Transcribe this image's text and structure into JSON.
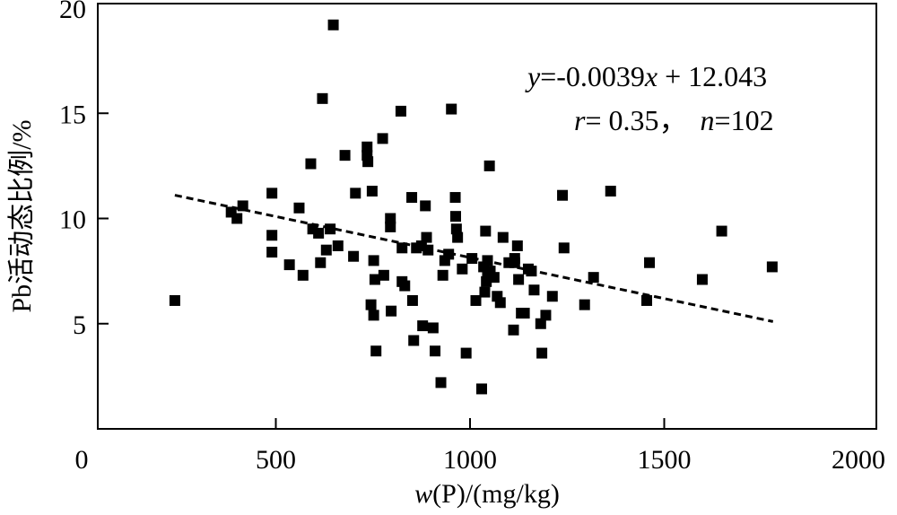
{
  "chart_data": {
    "type": "scatter",
    "title": "",
    "xlabel_var": "w",
    "xlabel_rest": "(P)/(mg/kg)",
    "ylabel": "Pb活动态比例/%",
    "xlim": [
      0,
      2000
    ],
    "ylim": [
      0,
      20
    ],
    "x_ticks": [
      0,
      500,
      1000,
      1500,
      2000
    ],
    "y_ticks": [
      5,
      10,
      15,
      20
    ],
    "x_tick_labels": [
      "0",
      "500",
      "1000",
      "1500",
      "2000"
    ],
    "y_tick_labels": [
      "5",
      "10",
      "15",
      "20"
    ],
    "grid": false,
    "legend": "none",
    "marker": "square",
    "marker_color": "#000000",
    "trendline": {
      "slope": -0.0039,
      "intercept": 12.043,
      "x_range": [
        240,
        1780
      ],
      "style": "dashed"
    },
    "annotations": {
      "equation": {
        "y_var": "y",
        "eq1": "=-0.0039",
        "x_var": "x",
        "eq2": " + 12.043"
      },
      "stats": {
        "r_var": "r",
        "r_text": "= 0.35，",
        "n_var": "n",
        "n_text": "=102"
      }
    },
    "points": [
      {
        "x": 240,
        "y": 6.1
      },
      {
        "x": 385,
        "y": 10.3
      },
      {
        "x": 400,
        "y": 10.0
      },
      {
        "x": 415,
        "y": 10.6
      },
      {
        "x": 490,
        "y": 11.2
      },
      {
        "x": 490,
        "y": 9.2
      },
      {
        "x": 490,
        "y": 8.4
      },
      {
        "x": 535,
        "y": 7.8
      },
      {
        "x": 560,
        "y": 10.5
      },
      {
        "x": 570,
        "y": 7.3
      },
      {
        "x": 590,
        "y": 12.6
      },
      {
        "x": 595,
        "y": 9.5
      },
      {
        "x": 610,
        "y": 9.3
      },
      {
        "x": 615,
        "y": 7.9
      },
      {
        "x": 620,
        "y": 15.7
      },
      {
        "x": 630,
        "y": 8.5
      },
      {
        "x": 640,
        "y": 9.5
      },
      {
        "x": 648,
        "y": 19.2
      },
      {
        "x": 660,
        "y": 8.7
      },
      {
        "x": 678,
        "y": 13.0
      },
      {
        "x": 700,
        "y": 8.2
      },
      {
        "x": 705,
        "y": 11.2
      },
      {
        "x": 735,
        "y": 13.4
      },
      {
        "x": 735,
        "y": 13.0
      },
      {
        "x": 737,
        "y": 12.7
      },
      {
        "x": 745,
        "y": 5.9
      },
      {
        "x": 748,
        "y": 11.3
      },
      {
        "x": 752,
        "y": 8.0
      },
      {
        "x": 752,
        "y": 5.4
      },
      {
        "x": 755,
        "y": 7.1
      },
      {
        "x": 758,
        "y": 3.7
      },
      {
        "x": 775,
        "y": 13.8
      },
      {
        "x": 778,
        "y": 7.3
      },
      {
        "x": 795,
        "y": 10.0
      },
      {
        "x": 795,
        "y": 9.6
      },
      {
        "x": 797,
        "y": 5.6
      },
      {
        "x": 822,
        "y": 15.1
      },
      {
        "x": 825,
        "y": 8.6
      },
      {
        "x": 825,
        "y": 7.0
      },
      {
        "x": 832,
        "y": 6.8
      },
      {
        "x": 850,
        "y": 11.0
      },
      {
        "x": 852,
        "y": 6.1
      },
      {
        "x": 855,
        "y": 4.2
      },
      {
        "x": 862,
        "y": 8.6
      },
      {
        "x": 875,
        "y": 8.7
      },
      {
        "x": 878,
        "y": 4.9
      },
      {
        "x": 885,
        "y": 10.6
      },
      {
        "x": 888,
        "y": 9.1
      },
      {
        "x": 892,
        "y": 8.5
      },
      {
        "x": 905,
        "y": 4.8
      },
      {
        "x": 910,
        "y": 3.7
      },
      {
        "x": 925,
        "y": 2.2
      },
      {
        "x": 930,
        "y": 7.3
      },
      {
        "x": 935,
        "y": 8.0
      },
      {
        "x": 945,
        "y": 8.3
      },
      {
        "x": 952,
        "y": 15.2
      },
      {
        "x": 962,
        "y": 11.0
      },
      {
        "x": 963,
        "y": 10.1
      },
      {
        "x": 965,
        "y": 9.5
      },
      {
        "x": 968,
        "y": 9.1
      },
      {
        "x": 980,
        "y": 7.6
      },
      {
        "x": 990,
        "y": 3.6
      },
      {
        "x": 1005,
        "y": 8.1
      },
      {
        "x": 1015,
        "y": 6.1
      },
      {
        "x": 1030,
        "y": 1.9
      },
      {
        "x": 1035,
        "y": 7.7
      },
      {
        "x": 1038,
        "y": 6.5
      },
      {
        "x": 1040,
        "y": 9.4
      },
      {
        "x": 1042,
        "y": 7.0
      },
      {
        "x": 1045,
        "y": 8.0
      },
      {
        "x": 1050,
        "y": 12.5
      },
      {
        "x": 1052,
        "y": 7.5
      },
      {
        "x": 1062,
        "y": 7.2
      },
      {
        "x": 1070,
        "y": 6.3
      },
      {
        "x": 1078,
        "y": 6.0
      },
      {
        "x": 1085,
        "y": 9.1
      },
      {
        "x": 1100,
        "y": 7.9
      },
      {
        "x": 1112,
        "y": 4.7
      },
      {
        "x": 1115,
        "y": 8.1
      },
      {
        "x": 1122,
        "y": 8.7
      },
      {
        "x": 1125,
        "y": 7.1
      },
      {
        "x": 1132,
        "y": 5.5
      },
      {
        "x": 1140,
        "y": 5.5
      },
      {
        "x": 1150,
        "y": 7.6
      },
      {
        "x": 1165,
        "y": 6.6
      },
      {
        "x": 1182,
        "y": 5.0
      },
      {
        "x": 1185,
        "y": 3.6
      },
      {
        "x": 1195,
        "y": 5.4
      },
      {
        "x": 1212,
        "y": 6.3
      },
      {
        "x": 1238,
        "y": 11.1
      },
      {
        "x": 1242,
        "y": 8.6
      },
      {
        "x": 1318,
        "y": 7.2
      },
      {
        "x": 1295,
        "y": 5.9
      },
      {
        "x": 1362,
        "y": 11.3
      },
      {
        "x": 1455,
        "y": 6.1
      },
      {
        "x": 1462,
        "y": 7.9
      },
      {
        "x": 1598,
        "y": 7.1
      },
      {
        "x": 1648,
        "y": 9.4
      },
      {
        "x": 1778,
        "y": 7.7
      },
      {
        "x": 1115,
        "y": 7.9
      },
      {
        "x": 1045,
        "y": 7.4
      },
      {
        "x": 1158,
        "y": 7.5
      }
    ]
  }
}
